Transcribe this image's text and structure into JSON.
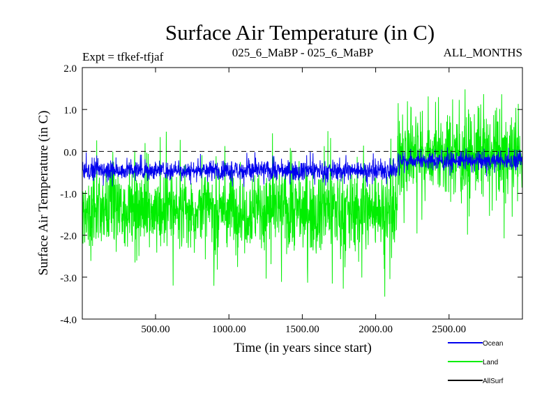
{
  "chart_data": {
    "type": "line",
    "title": "Surface Air Temperature (in C)",
    "experiment_label": "Expt = tfkef-tfjaf",
    "comparison_label": "025_6_MaBP - 025_6_MaBP",
    "period_label": "ALL_MONTHS",
    "xlabel": "Time (in years since start)",
    "ylabel": "Surface Air Temperature (in C)",
    "xlim": [
      1,
      3000
    ],
    "ylim": [
      -4.0,
      2.0
    ],
    "x_ticks": [
      500,
      1000,
      1500,
      2000,
      2500
    ],
    "x_tick_labels": [
      "500.00",
      "1000.00",
      "1500.00",
      "2000.00",
      "2500.00"
    ],
    "y_ticks": [
      2.0,
      1.0,
      0.0,
      -1.0,
      -2.0,
      -3.0,
      -4.0
    ],
    "y_tick_labels": [
      "2.0",
      "1.0",
      "0.0",
      "-1.0",
      "-2.0",
      "-3.0",
      "-4.0"
    ],
    "reference_line": 0.0,
    "regime_change_year": 2150,
    "series": [
      {
        "name": "Land",
        "color": "#00ee00",
        "segments": [
          {
            "x_range": [
              1,
              2150
            ],
            "mean": -1.35,
            "typical_min": -2.2,
            "typical_max": -0.55,
            "extreme_min": -3.5,
            "extreme_max": 0.5
          },
          {
            "x_range": [
              2150,
              3000
            ],
            "mean": -0.15,
            "typical_min": -0.95,
            "typical_max": 0.8,
            "extreme_min": -2.1,
            "extreme_max": 1.5
          }
        ]
      },
      {
        "name": "Ocean",
        "color": "#0000ee",
        "segments": [
          {
            "x_range": [
              1,
              2150
            ],
            "mean": -0.45,
            "typical_min": -0.65,
            "typical_max": -0.25,
            "extreme_min": -0.85,
            "extreme_max": 0.0
          },
          {
            "x_range": [
              2150,
              3000
            ],
            "mean": -0.22,
            "typical_min": -0.4,
            "typical_max": -0.05,
            "extreme_min": -0.6,
            "extreme_max": 0.1
          }
        ]
      },
      {
        "name": "AllSurf",
        "color": "#000000",
        "segments": []
      }
    ]
  }
}
